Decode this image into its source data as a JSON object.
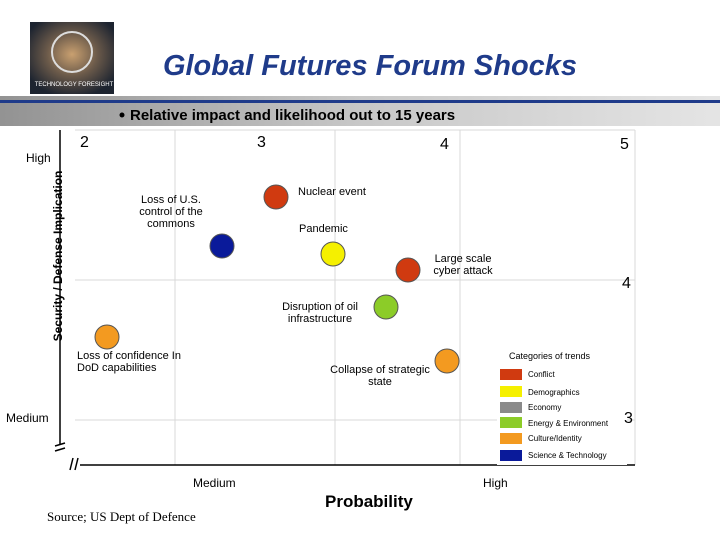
{
  "header": {
    "logo_text": "TECHNOLOGY FORESIGHT",
    "title": "Global Futures Forum Shocks",
    "subtitle": "Relative impact and likelihood out to 15 years"
  },
  "axes": {
    "y_label": "Security / Defense Implication",
    "y_high": "High",
    "y_medium": "Medium",
    "x_label": "Probability",
    "x_medium": "Medium",
    "x_high": "High"
  },
  "grid_numbers": {
    "top": [
      "2",
      "3",
      "4",
      "5"
    ],
    "right": [
      "4",
      "3"
    ]
  },
  "nodes": [
    {
      "label": "Nuclear event"
    },
    {
      "label": "Loss of U.S. control of the commons"
    },
    {
      "label": "Pandemic"
    },
    {
      "label": "Large scale cyber attack"
    },
    {
      "label": "Disruption of oil infrastructure"
    },
    {
      "label": "Loss of confidence In DoD capabilities"
    },
    {
      "label": "Collapse of strategic state"
    }
  ],
  "legend": {
    "title": "Categories of trends",
    "items": [
      "Conflict",
      "Demographics",
      "Economy",
      "Energy & Environment",
      "Culture/Identity",
      "Science & Technology"
    ]
  },
  "source": "Source; US Dept of Defence"
}
